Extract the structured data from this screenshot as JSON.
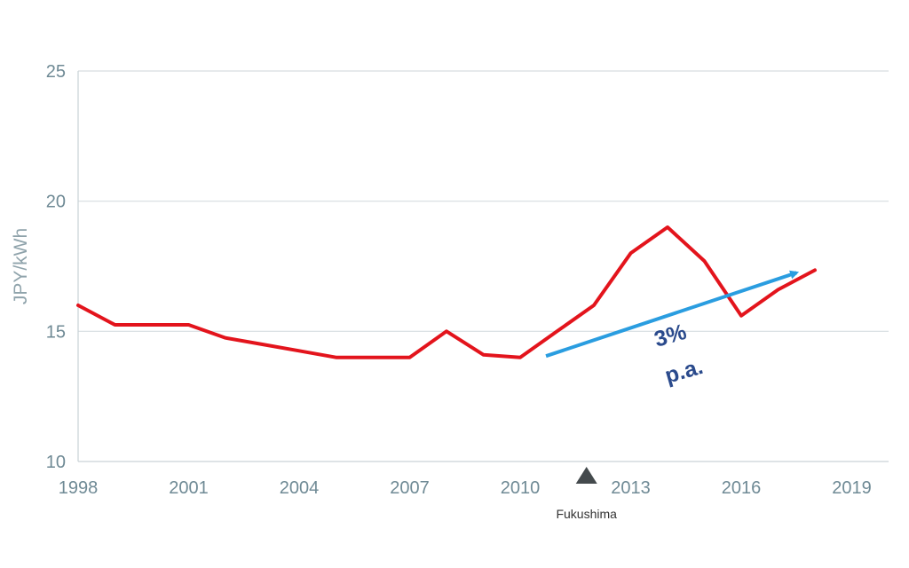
{
  "chart_data": {
    "type": "line",
    "xlabel": "",
    "ylabel": "JPY/kWh",
    "xlim": [
      1998,
      2020
    ],
    "ylim": [
      10,
      25
    ],
    "x_ticks": [
      "1998",
      "2001",
      "2004",
      "2007",
      "2010",
      "2013",
      "2016",
      "2019"
    ],
    "y_ticks": [
      "10",
      "15",
      "20",
      "25"
    ],
    "grid": true,
    "series": [
      {
        "color": "#e3141c",
        "points": [
          [
            1998,
            16.0
          ],
          [
            1999,
            15.25
          ],
          [
            2000,
            15.25
          ],
          [
            2001,
            15.25
          ],
          [
            2002,
            14.75
          ],
          [
            2003,
            14.5
          ],
          [
            2004,
            14.25
          ],
          [
            2005,
            14.0
          ],
          [
            2006,
            14.0
          ],
          [
            2007,
            14.0
          ],
          [
            2008,
            15.0
          ],
          [
            2009,
            14.1
          ],
          [
            2010,
            14.0
          ],
          [
            2011,
            15.0
          ],
          [
            2012,
            16.0
          ],
          [
            2013,
            18.0
          ],
          [
            2014,
            19.0
          ],
          [
            2015,
            17.7
          ],
          [
            2016,
            15.6
          ],
          [
            2017,
            16.6
          ],
          [
            2018,
            17.35
          ]
        ]
      }
    ],
    "trend": {
      "color": "#2a9de0",
      "from": [
        2010.7,
        14.05
      ],
      "to": [
        2017.5,
        17.25
      ],
      "label_line1": "3%",
      "label_line2": "p.a."
    },
    "event": {
      "x": 2011.8,
      "label": "Fukushima"
    }
  }
}
